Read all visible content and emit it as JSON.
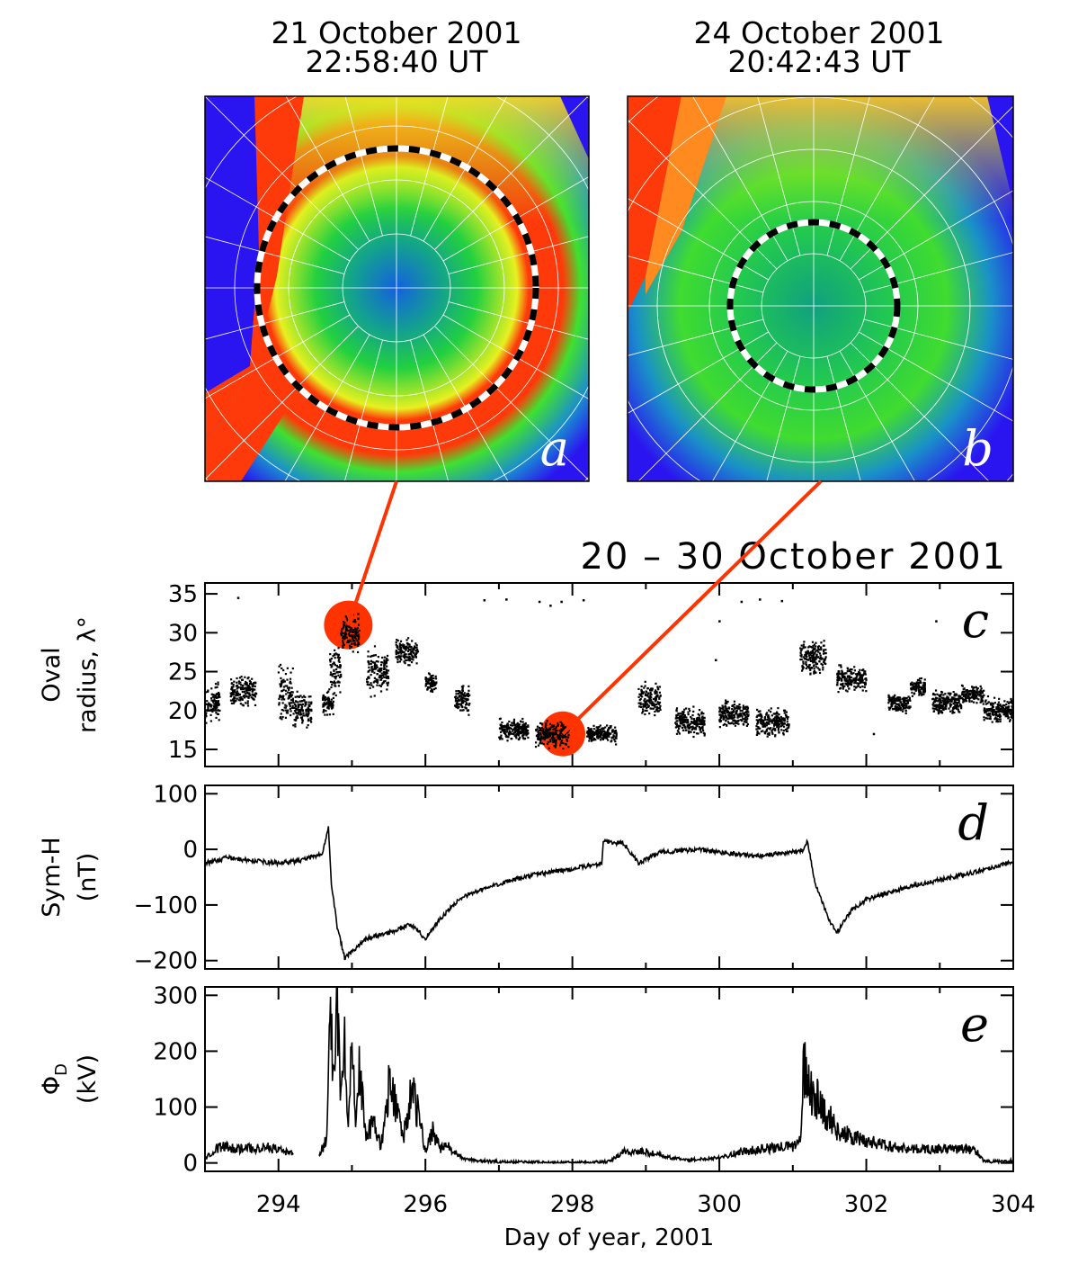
{
  "images": [
    {
      "id": "a",
      "date": "21 October 2001",
      "time": "22:58:40 UT",
      "label": "a",
      "linked_day": 294.95,
      "linked_radius": 31
    },
    {
      "id": "b",
      "date": "24 October 2001",
      "time": "20:42:43 UT",
      "label": "b",
      "linked_day": 297.87,
      "linked_radius": 17
    }
  ],
  "period_title": "20 – 30 October 2001",
  "colors": {
    "highlight": "#ff3300",
    "blue": "#2a14f0",
    "green": "#22dd33",
    "red": "#ff3a0a"
  },
  "chart_data": [
    {
      "id": "c",
      "type": "scatter",
      "label": "c",
      "ylabel": [
        "Oval",
        "radius, λ°"
      ],
      "ylim": [
        12.8,
        36.4
      ],
      "xlim": [
        293,
        304
      ],
      "yticks": [
        15,
        20,
        25,
        30,
        35
      ],
      "clusters": [
        [
          293.0,
          293.2,
          21,
          2
        ],
        [
          293.35,
          293.7,
          22.5,
          1.5
        ],
        [
          294.0,
          294.2,
          22,
          3
        ],
        [
          294.2,
          294.45,
          20,
          2
        ],
        [
          294.6,
          294.75,
          21,
          1.5
        ],
        [
          294.7,
          294.85,
          25,
          3
        ],
        [
          294.85,
          295.1,
          30,
          2
        ],
        [
          295.2,
          295.5,
          25,
          2.5
        ],
        [
          295.6,
          295.9,
          27.5,
          1.5
        ],
        [
          296.0,
          296.15,
          23.5,
          1
        ],
        [
          296.4,
          296.6,
          21.5,
          1.5
        ],
        [
          297.0,
          297.4,
          17.5,
          1.2
        ],
        [
          297.5,
          297.95,
          17,
          1.5
        ],
        [
          298.2,
          298.6,
          17,
          1
        ],
        [
          298.9,
          299.2,
          21.5,
          1.8
        ],
        [
          299.4,
          299.8,
          18.5,
          1.5
        ],
        [
          300.0,
          300.4,
          19.5,
          1.5
        ],
        [
          300.5,
          300.95,
          18.5,
          1.5
        ],
        [
          301.1,
          301.45,
          27,
          2
        ],
        [
          301.6,
          302.0,
          24,
          1.5
        ],
        [
          302.3,
          302.6,
          21,
          1
        ],
        [
          302.6,
          302.8,
          23,
          1
        ],
        [
          302.9,
          303.3,
          21,
          1.3
        ],
        [
          303.3,
          303.6,
          22,
          1
        ],
        [
          303.6,
          304,
          20,
          1.3
        ]
      ],
      "outliers": [
        [
          293.45,
          34.5
        ],
        [
          296.8,
          34.2
        ],
        [
          297.1,
          34.3
        ],
        [
          297.55,
          34.0
        ],
        [
          297.7,
          33.5
        ],
        [
          297.85,
          34
        ],
        [
          298.15,
          34.2
        ],
        [
          299.7,
          34.1
        ],
        [
          300.3,
          34.0
        ],
        [
          300.55,
          34.3
        ],
        [
          300.85,
          34.1
        ],
        [
          300.0,
          31.5
        ],
        [
          299.95,
          26.5
        ],
        [
          302.95,
          31.5
        ],
        [
          302.1,
          17
        ]
      ]
    },
    {
      "id": "d",
      "type": "line",
      "label": "d",
      "ylabel": [
        "Sym-H",
        "(nT)"
      ],
      "ylim": [
        -215,
        115
      ],
      "xlim": [
        293,
        304
      ],
      "yticks": [
        100,
        0,
        -100,
        -200
      ],
      "x": [
        293,
        293.3,
        293.6,
        294,
        294.3,
        294.6,
        294.68,
        294.72,
        294.8,
        294.9,
        295,
        295.2,
        295.5,
        295.8,
        296,
        296.2,
        296.5,
        297,
        297.5,
        298,
        298.4,
        298.42,
        298.7,
        298.9,
        299.2,
        299.7,
        300,
        300.5,
        301,
        301.15,
        301.2,
        301.3,
        301.5,
        301.6,
        301.8,
        302,
        302.5,
        303,
        303.5,
        304
      ],
      "y": [
        -25,
        -15,
        -20,
        -25,
        -20,
        -8,
        40,
        -60,
        -140,
        -195,
        -185,
        -160,
        -150,
        -135,
        -160,
        -125,
        -85,
        -62,
        -45,
        -35,
        -25,
        15,
        10,
        -25,
        -5,
        0,
        -5,
        -12,
        -5,
        0,
        15,
        -60,
        -130,
        -150,
        -110,
        -90,
        -70,
        -55,
        -40,
        -22
      ]
    },
    {
      "id": "e",
      "type": "line",
      "label": "e",
      "ylabel": [
        "Φ_D",
        "(kV)"
      ],
      "ylabel_main": "Φ",
      "ylabel_sub": "D",
      "ylabel_unit": "(kV)",
      "ylim": [
        -15,
        315
      ],
      "xlim": [
        293,
        304
      ],
      "yticks": [
        300,
        200,
        100,
        0
      ],
      "xticks": [
        294,
        296,
        298,
        300,
        302,
        304
      ],
      "xlabel": "Day of year, 2001",
      "segments": [
        {
          "x": [
            293,
            293.2,
            293.5,
            293.8,
            294,
            294.2
          ],
          "y": [
            10,
            30,
            25,
            28,
            25,
            15
          ]
        },
        {
          "x": [
            294.55,
            294.65,
            294.7,
            294.75,
            294.8,
            294.85,
            294.9,
            294.95,
            295,
            295.05,
            295.1,
            295.2,
            295.3,
            295.4,
            295.5,
            295.6,
            295.7,
            295.8,
            295.9,
            296,
            296.1,
            296.2,
            296.3,
            296.5,
            296.8,
            297,
            297.5,
            298,
            298.5,
            298.7,
            299,
            299.3,
            299.6,
            300,
            300.3,
            300.6,
            301,
            301.1,
            301.15,
            301.25,
            301.4,
            301.6,
            301.8,
            302,
            302.3,
            302.6,
            303,
            303.3,
            303.5,
            303.6,
            303.8,
            304
          ],
          "y": [
            15,
            40,
            250,
            180,
            300,
            120,
            220,
            60,
            290,
            80,
            160,
            50,
            70,
            30,
            130,
            110,
            40,
            130,
            90,
            20,
            60,
            25,
            30,
            8,
            3,
            2,
            1,
            0,
            2,
            20,
            20,
            10,
            5,
            10,
            20,
            25,
            30,
            40,
            170,
            130,
            100,
            60,
            45,
            40,
            30,
            25,
            25,
            25,
            22,
            3,
            2,
            5
          ]
        }
      ]
    }
  ]
}
